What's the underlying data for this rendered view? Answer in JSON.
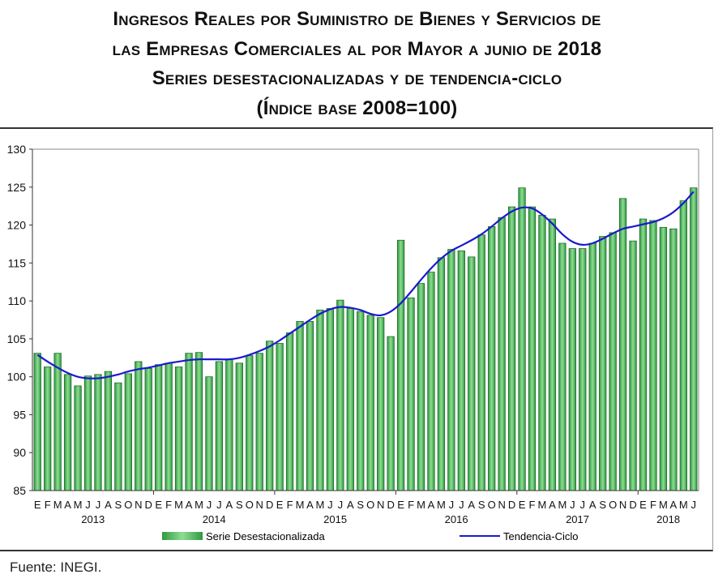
{
  "title": {
    "line1": "Ingresos Reales por Suministro de Bienes y Servicios de",
    "line2": "las Empresas Comerciales al por Mayor a junio de 2018",
    "line3": "Series desestacionalizadas y de tendencia-ciclo",
    "line4": "(Índice base 2008=100)"
  },
  "footer": "Fuente: INEGI.",
  "colors": {
    "bars": "#4cb85c",
    "bar_stroke": "#1f6b2a",
    "trend": "#1a1acc"
  },
  "chart_data": {
    "type": "bar",
    "ylim": [
      85,
      130
    ],
    "yticks": [
      85,
      90,
      95,
      100,
      105,
      110,
      115,
      120,
      125,
      130
    ],
    "grid": false,
    "legend_placement": "bottom",
    "month_labels": [
      "E",
      "F",
      "M",
      "A",
      "M",
      "J",
      "J",
      "A",
      "S",
      "O",
      "N",
      "D",
      "E",
      "F",
      "M",
      "A",
      "M",
      "J",
      "J",
      "A",
      "S",
      "O",
      "N",
      "D",
      "E",
      "F",
      "M",
      "A",
      "M",
      "J",
      "J",
      "A",
      "S",
      "O",
      "N",
      "D",
      "E",
      "F",
      "M",
      "A",
      "M",
      "J",
      "J",
      "A",
      "S",
      "O",
      "N",
      "D",
      "E",
      "F",
      "M",
      "A",
      "M",
      "J",
      "J",
      "A",
      "S",
      "O",
      "N",
      "D",
      "E",
      "F",
      "M",
      "A",
      "M",
      "J"
    ],
    "years": [
      "2013",
      "2014",
      "2015",
      "2016",
      "2017",
      "2018"
    ],
    "series": [
      {
        "name": "Serie Desestacionalizada",
        "type": "bar",
        "values": [
          103.1,
          101.3,
          103.1,
          100.3,
          98.8,
          100.1,
          100.3,
          100.7,
          99.2,
          100.4,
          102.0,
          101.1,
          101.6,
          101.8,
          101.3,
          103.1,
          103.2,
          100.0,
          102.0,
          102.3,
          101.8,
          102.8,
          103.1,
          104.7,
          104.4,
          105.8,
          107.3,
          107.3,
          108.8,
          109.0,
          110.1,
          109.0,
          108.6,
          108.1,
          107.8,
          105.3,
          118.0,
          110.4,
          112.3,
          113.8,
          115.7,
          116.8,
          116.6,
          115.8,
          118.7,
          119.8,
          121.0,
          122.4,
          124.9,
          122.4,
          121.3,
          120.8,
          117.6,
          116.9,
          116.9,
          117.6,
          118.5,
          119.0,
          123.5,
          117.9,
          120.8,
          120.6,
          119.7,
          119.5,
          123.2,
          124.9
        ]
      },
      {
        "name": "Tendencia-Ciclo",
        "type": "line",
        "values": [
          102.9,
          102.0,
          101.2,
          100.5,
          100.0,
          99.8,
          99.8,
          100.0,
          100.3,
          100.7,
          101.0,
          101.2,
          101.5,
          101.8,
          102.0,
          102.2,
          102.3,
          102.3,
          102.3,
          102.3,
          102.5,
          102.9,
          103.4,
          104.0,
          104.8,
          105.7,
          106.6,
          107.5,
          108.3,
          108.9,
          109.2,
          109.1,
          108.8,
          108.3,
          108.1,
          108.6,
          109.7,
          111.2,
          112.8,
          114.3,
          115.6,
          116.6,
          117.3,
          118.0,
          118.8,
          119.8,
          120.9,
          121.8,
          122.3,
          122.2,
          121.4,
          120.2,
          118.8,
          117.8,
          117.4,
          117.6,
          118.2,
          118.9,
          119.5,
          119.8,
          120.1,
          120.4,
          120.9,
          121.7,
          122.9,
          124.4
        ]
      }
    ]
  }
}
